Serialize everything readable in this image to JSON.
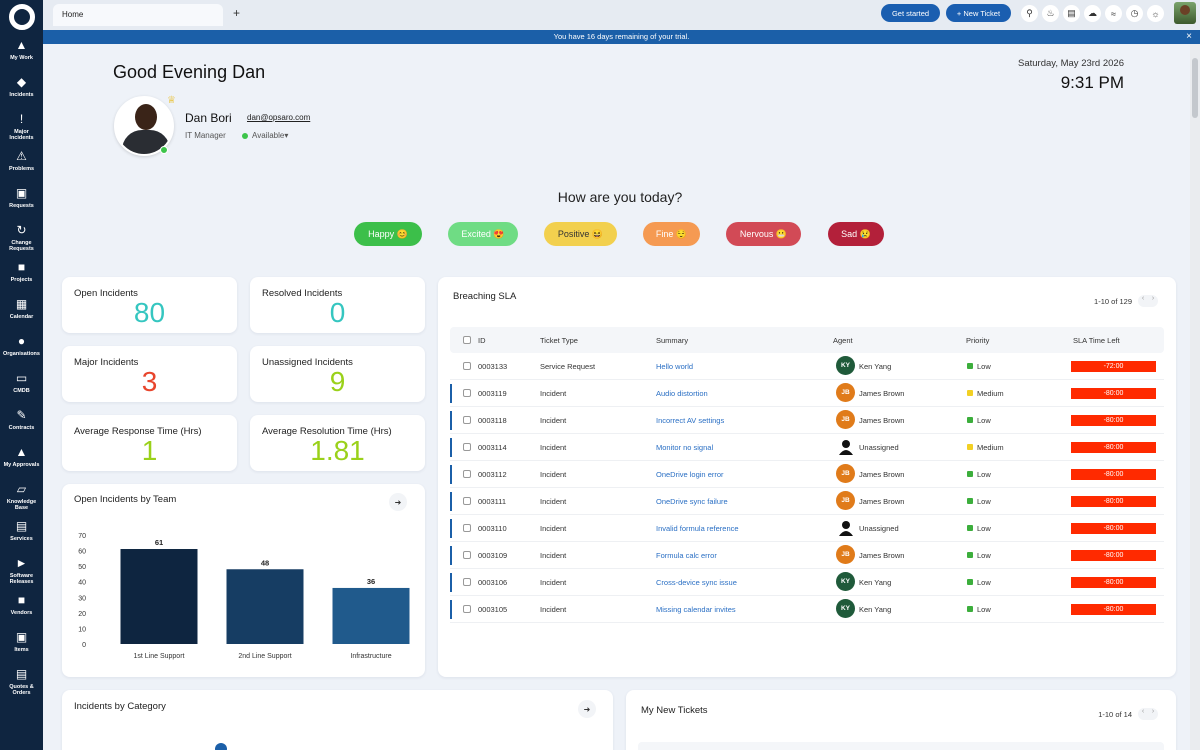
{
  "sidebar": {
    "items": [
      {
        "label": "My Work",
        "icon": "pin-icon"
      },
      {
        "label": "Incidents",
        "icon": "tag-icon"
      },
      {
        "label": "Major\nIncidents",
        "icon": "exclamation-icon"
      },
      {
        "label": "Problems",
        "icon": "warning-icon"
      },
      {
        "label": "Requests",
        "icon": "cart-icon"
      },
      {
        "label": "Change\nRequests",
        "icon": "sync-icon"
      },
      {
        "label": "Projects",
        "icon": "briefcase-icon"
      },
      {
        "label": "Calendar",
        "icon": "calendar-icon"
      },
      {
        "label": "Organisations",
        "icon": "person-icon"
      },
      {
        "label": "CMDB",
        "icon": "laptop-icon"
      },
      {
        "label": "Contracts",
        "icon": "contract-icon"
      },
      {
        "label": "My Approvals",
        "icon": "thumbs-up-icon"
      },
      {
        "label": "Knowledge\nBase",
        "icon": "cube-icon"
      },
      {
        "label": "Services",
        "icon": "book-icon"
      },
      {
        "label": "Software\nReleases",
        "icon": "rocket-icon"
      },
      {
        "label": "Vendors",
        "icon": "truck-icon"
      },
      {
        "label": "Items",
        "icon": "box-icon"
      },
      {
        "label": "Quotes &\nOrders",
        "icon": "invoice-icon"
      }
    ]
  },
  "topbar": {
    "tab_home": "Home",
    "tab_add": "+",
    "get_started": "Get started",
    "new_ticket": "+ New Ticket"
  },
  "trial": {
    "text": "You have 16 days remaining of your trial.",
    "close": "×"
  },
  "header": {
    "greeting": "Good Evening Dan",
    "date": "Saturday, May 23rd 2026",
    "time": "9:31 PM",
    "user_name": "Dan Bori",
    "user_email": "dan@opsaro.com",
    "user_role": "IT Manager",
    "user_status": "Available",
    "status_caret": "▾"
  },
  "mood": {
    "question": "How are you today?",
    "options": [
      {
        "label": "Happy 😊",
        "color": "#3cbf4a"
      },
      {
        "label": "Excited 😍",
        "color": "#6fdc84"
      },
      {
        "label": "Positive 😆",
        "color": "#f2d04e"
      },
      {
        "label": "Fine 😌",
        "color": "#f59a52"
      },
      {
        "label": "Nervous 😬",
        "color": "#d24a56"
      },
      {
        "label": "Sad 😢",
        "color": "#b3203a"
      }
    ]
  },
  "stats": [
    {
      "title": "Open Incidents",
      "value": "80",
      "color": "#35c6c0"
    },
    {
      "title": "Resolved Incidents",
      "value": "0",
      "color": "#35c6c0"
    },
    {
      "title": "Major Incidents",
      "value": "3",
      "color": "#e8452c"
    },
    {
      "title": "Unassigned Incidents",
      "value": "9",
      "color": "#9ad11a"
    },
    {
      "title": "Average Response Time (Hrs)",
      "value": "1",
      "color": "#9ad11a"
    },
    {
      "title": "Average Resolution Time (Hrs)",
      "value": "1.81",
      "color": "#9ad11a"
    }
  ],
  "team_chart_title": "Open Incidents by Team",
  "category_chart_title": "Incidents by Category",
  "chart_data": {
    "type": "bar",
    "title": "Open Incidents by Team",
    "categories": [
      "1st Line Support",
      "2nd Line Support",
      "Infrastructure"
    ],
    "values": [
      61,
      48,
      36
    ],
    "colors": [
      "#0e2540",
      "#163d63",
      "#205a8c"
    ],
    "ylim": [
      0,
      70
    ],
    "yticks": [
      0,
      10,
      20,
      30,
      40,
      50,
      60,
      70
    ],
    "xlabel": "",
    "ylabel": "",
    "grid": false
  },
  "sla": {
    "title": "Breaching SLA",
    "pager": "1-10 of 129",
    "columns": [
      "ID",
      "Ticket Type",
      "Summary",
      "Agent",
      "Priority",
      "SLA Time Left"
    ],
    "rows": [
      {
        "id": "0003133",
        "type": "Service Request",
        "summary": "Hello world",
        "agent": "Ken Yang",
        "initials": "KY",
        "agent_color": "#1f5a3a",
        "priority": "Low",
        "pri_color": "#3cae3c",
        "sla": "-72:00",
        "flag": false
      },
      {
        "id": "0003119",
        "type": "Incident",
        "summary": "Audio distortion",
        "agent": "James Brown",
        "initials": "JB",
        "agent_color": "#e07b1a",
        "priority": "Medium",
        "pri_color": "#f2d024",
        "sla": "-80:00",
        "flag": true
      },
      {
        "id": "0003118",
        "type": "Incident",
        "summary": "Incorrect AV settings",
        "agent": "James Brown",
        "initials": "JB",
        "agent_color": "#e07b1a",
        "priority": "Low",
        "pri_color": "#3cae3c",
        "sla": "-80:00",
        "flag": true
      },
      {
        "id": "0003114",
        "type": "Incident",
        "summary": "Monitor no signal",
        "agent": "Unassigned",
        "initials": "",
        "agent_color": "#ffffff",
        "priority": "Medium",
        "pri_color": "#f2d024",
        "sla": "-80:00",
        "flag": true
      },
      {
        "id": "0003112",
        "type": "Incident",
        "summary": "OneDrive login error",
        "agent": "James Brown",
        "initials": "JB",
        "agent_color": "#e07b1a",
        "priority": "Low",
        "pri_color": "#3cae3c",
        "sla": "-80:00",
        "flag": true
      },
      {
        "id": "0003111",
        "type": "Incident",
        "summary": "OneDrive sync failure",
        "agent": "James Brown",
        "initials": "JB",
        "agent_color": "#e07b1a",
        "priority": "Low",
        "pri_color": "#3cae3c",
        "sla": "-80:00",
        "flag": true
      },
      {
        "id": "0003110",
        "type": "Incident",
        "summary": "Invalid formula reference",
        "agent": "Unassigned",
        "initials": "",
        "agent_color": "#ffffff",
        "priority": "Low",
        "pri_color": "#3cae3c",
        "sla": "-80:00",
        "flag": true
      },
      {
        "id": "0003109",
        "type": "Incident",
        "summary": "Formula calc error",
        "agent": "James Brown",
        "initials": "JB",
        "agent_color": "#e07b1a",
        "priority": "Low",
        "pri_color": "#3cae3c",
        "sla": "-80:00",
        "flag": true
      },
      {
        "id": "0003106",
        "type": "Incident",
        "summary": "Cross-device sync issue",
        "agent": "Ken Yang",
        "initials": "KY",
        "agent_color": "#1f5a3a",
        "priority": "Low",
        "pri_color": "#3cae3c",
        "sla": "-80:00",
        "flag": true
      },
      {
        "id": "0003105",
        "type": "Incident",
        "summary": "Missing calendar invites",
        "agent": "Ken Yang",
        "initials": "KY",
        "agent_color": "#1f5a3a",
        "priority": "Low",
        "pri_color": "#3cae3c",
        "sla": "-80:00",
        "flag": true
      }
    ]
  },
  "new_tickets": {
    "title": "My New Tickets",
    "pager": "1-10 of 14"
  }
}
